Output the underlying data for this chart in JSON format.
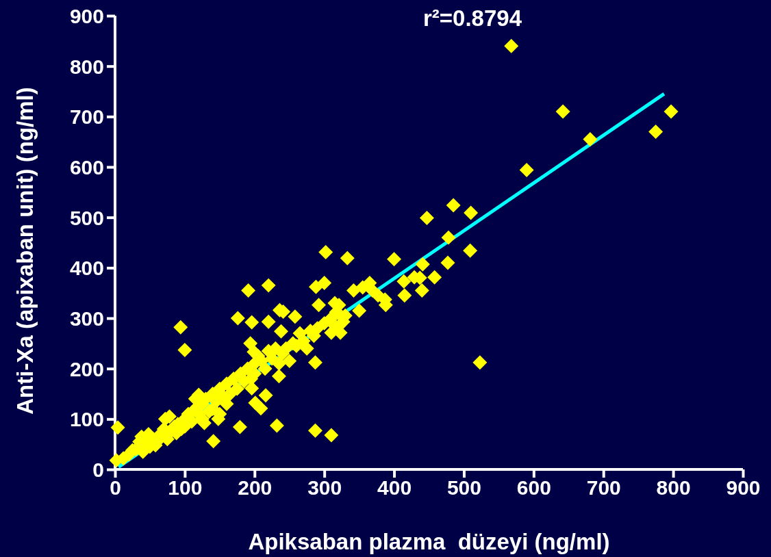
{
  "chart_data": {
    "type": "scatter",
    "xlabel": "Apiksaban plazma  düzeyi (ng/ml)",
    "ylabel": "Anti-Xa (apixaban unit) (ng/ml)",
    "annotations": [
      "r²=0.8794"
    ],
    "xlim": [
      0,
      900
    ],
    "ylim": [
      0,
      900
    ],
    "xticks": [
      0,
      100,
      200,
      300,
      400,
      500,
      600,
      700,
      800,
      900
    ],
    "yticks": [
      0,
      100,
      200,
      300,
      400,
      500,
      600,
      700,
      800,
      900
    ],
    "grid": false,
    "series": [
      {
        "marker": "diamond",
        "color": "#ffff00",
        "x": [
          4,
          2,
          94,
          100,
          191,
          220,
          176,
          196,
          194,
          199,
          236,
          241,
          220,
          238,
          258,
          302,
          300,
          333,
          288,
          292,
          315,
          321,
          287,
          287,
          310,
          232,
          179,
          141,
          216,
          201,
          209,
          196,
          523,
          447,
          485,
          510,
          478,
          477,
          509,
          568,
          590,
          642,
          681,
          775,
          797,
          400,
          414,
          437,
          415,
          440,
          458,
          387,
          388,
          377,
          369,
          355,
          365,
          350,
          324,
          323,
          310,
          327,
          317,
          342,
          429,
          441,
          20,
          30,
          35,
          38,
          40,
          45,
          50,
          55,
          60,
          65,
          70,
          72,
          75,
          78,
          80,
          85,
          90,
          95,
          100,
          100,
          105,
          110,
          115,
          115,
          120,
          125,
          125,
          130,
          135,
          140,
          140,
          145,
          150,
          150,
          155,
          160,
          160,
          165,
          170,
          175,
          180,
          185,
          190,
          195,
          200,
          200,
          205,
          210,
          215,
          220,
          225,
          230,
          235,
          235,
          240,
          245,
          250,
          255,
          260,
          265,
          270,
          275,
          280,
          285,
          290,
          300,
          310,
          315,
          330,
          12,
          25,
          48,
          58,
          88,
          120,
          128,
          148
        ],
        "values": [
          83,
          18,
          282,
          237,
          355,
          365,
          300,
          292,
          250,
          233,
          316,
          313,
          293,
          274,
          303,
          431,
          370,
          419,
          362,
          326,
          330,
          326,
          212,
          77,
          68,
          87,
          84,
          56,
          147,
          132,
          121,
          161,
          212,
          499,
          524,
          509,
          460,
          410,
          434,
          840,
          594,
          710,
          655,
          670,
          710,
          417,
          373,
          380,
          345,
          355,
          381,
          337,
          326,
          345,
          355,
          361,
          370,
          315,
          304,
          271,
          271,
          293,
          312,
          355,
          381,
          407,
          30,
          40,
          55,
          65,
          35,
          50,
          45,
          60,
          55,
          70,
          80,
          100,
          60,
          105,
          75,
          85,
          90,
          80,
          100,
          85,
          110,
          95,
          120,
          140,
          110,
          130,
          100,
          140,
          115,
          150,
          120,
          135,
          160,
          110,
          145,
          170,
          130,
          150,
          180,
          160,
          190,
          175,
          200,
          180,
          210,
          190,
          225,
          215,
          200,
          235,
          220,
          240,
          210,
          185,
          230,
          240,
          215,
          250,
          245,
          270,
          255,
          240,
          275,
          265,
          280,
          290,
          300,
          285,
          305,
          22,
          38,
          70,
          48,
          72,
          148,
          92,
          100
        ]
      },
      {
        "type": "line",
        "color": "#00ffff",
        "x": [
          5,
          787
        ],
        "values": [
          5,
          745
        ]
      }
    ]
  }
}
